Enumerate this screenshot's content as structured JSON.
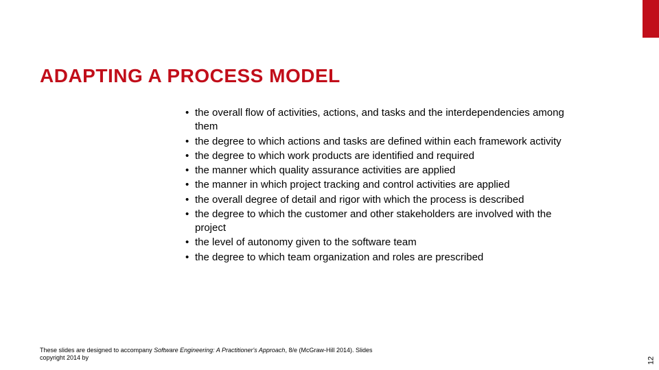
{
  "accent_color": "#c10e1a",
  "title": {
    "text": "ADAPTING A PROCESS MODEL",
    "color": "#c10e1a",
    "fontsize": 28,
    "weight": 900
  },
  "bullets": {
    "fontsize": 15,
    "color": "#000000",
    "items": [
      "the overall flow of activities, actions, and tasks and the interdependencies among them",
      "the degree to which actions and tasks are defined within each framework activity",
      "the degree to which work products are identified and required",
      "the manner which quality assurance activities are applied",
      "the manner in which project tracking and control activities are applied",
      "the overall degree of detail and rigor with which the process is described",
      "the degree to which the customer and other stakeholders are involved with the project",
      "the level of autonomy given to the software team",
      "the degree to which team organization and roles are prescribed"
    ]
  },
  "footer": {
    "fontsize": 9,
    "color": "#000000",
    "prefix": "These slides are designed to accompany ",
    "italic": "Software Engineering: A Practitioner's Approach",
    "suffix": ", 8/e (McGraw-Hill 2014). Slides copyright 2014 by"
  },
  "page_number": {
    "text": "12",
    "fontsize": 11,
    "color": "#000000"
  }
}
